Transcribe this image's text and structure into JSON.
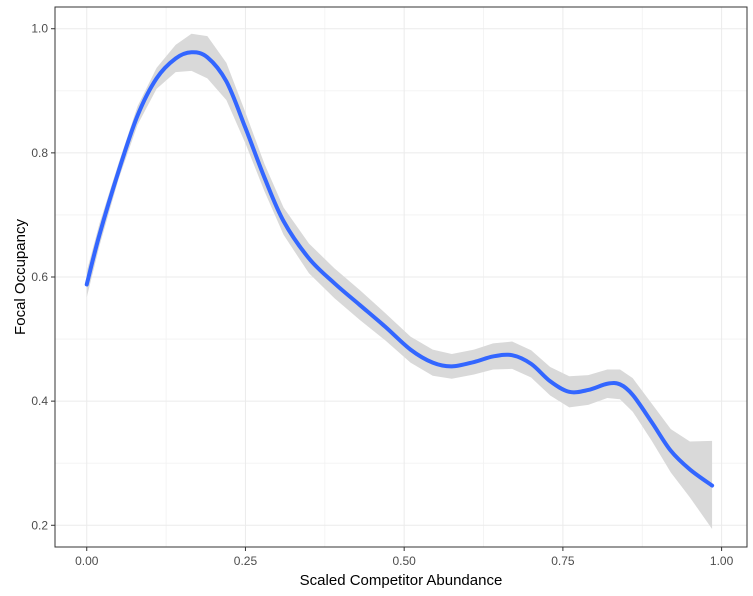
{
  "chart_data": {
    "type": "line",
    "xlabel": "Scaled Competitor Abundance",
    "ylabel": "Focal Occupancy",
    "xlim": [
      -0.05,
      1.04
    ],
    "ylim": [
      0.165,
      1.035
    ],
    "x_ticks": [
      0.0,
      0.25,
      0.5,
      0.75,
      1.0
    ],
    "x_tick_labels": [
      "0.00",
      "0.25",
      "0.50",
      "0.75",
      "1.00"
    ],
    "y_ticks": [
      0.2,
      0.4,
      0.6,
      0.8,
      1.0
    ],
    "y_tick_labels": [
      "0.2",
      "0.4",
      "0.6",
      "0.8",
      "1.0"
    ],
    "grid": true,
    "x_minor_ticks": [
      0.125,
      0.375,
      0.625,
      0.875
    ],
    "y_minor_ticks": [
      0.3,
      0.5,
      0.7,
      0.9
    ],
    "series": [
      {
        "color": "#3366FF",
        "band_color": "#d9d9d9",
        "x": [
          0.0,
          0.02,
          0.05,
          0.08,
          0.11,
          0.14,
          0.165,
          0.19,
          0.22,
          0.25,
          0.28,
          0.31,
          0.35,
          0.39,
          0.43,
          0.47,
          0.51,
          0.545,
          0.575,
          0.61,
          0.64,
          0.67,
          0.7,
          0.73,
          0.76,
          0.79,
          0.82,
          0.84,
          0.86,
          0.89,
          0.92,
          0.95,
          0.985
        ],
        "y": [
          0.588,
          0.668,
          0.77,
          0.86,
          0.92,
          0.952,
          0.962,
          0.954,
          0.915,
          0.84,
          0.76,
          0.69,
          0.63,
          0.59,
          0.555,
          0.52,
          0.483,
          0.462,
          0.456,
          0.463,
          0.472,
          0.474,
          0.46,
          0.432,
          0.415,
          0.418,
          0.428,
          0.427,
          0.41,
          0.366,
          0.32,
          0.29,
          0.264
        ],
        "lower": [
          0.567,
          0.65,
          0.757,
          0.845,
          0.903,
          0.93,
          0.932,
          0.92,
          0.885,
          0.815,
          0.738,
          0.668,
          0.606,
          0.566,
          0.531,
          0.498,
          0.462,
          0.441,
          0.436,
          0.443,
          0.451,
          0.452,
          0.438,
          0.409,
          0.39,
          0.394,
          0.405,
          0.403,
          0.383,
          0.336,
          0.285,
          0.245,
          0.194
        ],
        "upper": [
          0.609,
          0.686,
          0.783,
          0.875,
          0.937,
          0.974,
          0.992,
          0.988,
          0.945,
          0.865,
          0.782,
          0.712,
          0.654,
          0.614,
          0.579,
          0.542,
          0.504,
          0.483,
          0.476,
          0.483,
          0.493,
          0.496,
          0.482,
          0.455,
          0.44,
          0.442,
          0.451,
          0.451,
          0.437,
          0.396,
          0.355,
          0.335,
          0.336
        ]
      }
    ]
  }
}
